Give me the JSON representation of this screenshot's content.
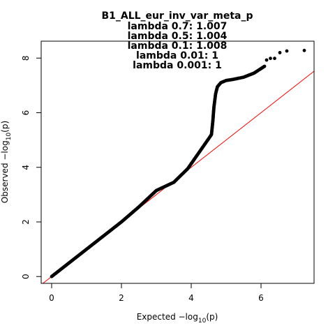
{
  "chart_data": {
    "type": "scatter",
    "title": "B1_ALL_eur_inv_var_meta_p",
    "subtitle_lines": [
      "lambda 0.7: 1.007",
      "lambda 0.5: 1.004",
      "lambda 0.1: 1.008",
      "lambda 0.01: 1",
      "lambda 0.001: 1"
    ],
    "xlabel": {
      "prefix": "Expected  −log",
      "sub": "10",
      "suffix": "(p)"
    },
    "ylabel": {
      "prefix": "Observed  −log",
      "sub": "10",
      "suffix": "(p)"
    },
    "xlim": [
      -0.3,
      7.52
    ],
    "ylim": [
      -0.25,
      8.62
    ],
    "xticks": [
      0,
      2,
      4,
      6
    ],
    "yticks": [
      0,
      2,
      4,
      6,
      8
    ],
    "grid": false,
    "reference_line": {
      "slope": 1,
      "intercept": 0,
      "color": "#ff0000"
    },
    "point_color": "#000000",
    "curve_points": [
      [
        0,
        0
      ],
      [
        0.5,
        0.5
      ],
      [
        1,
        1
      ],
      [
        2,
        2
      ],
      [
        2.5,
        2.55
      ],
      [
        3,
        3.15
      ],
      [
        3.5,
        3.45
      ],
      [
        3.9,
        3.95
      ],
      [
        4.2,
        4.5
      ],
      [
        4.5,
        5.05
      ],
      [
        4.58,
        5.2
      ],
      [
        4.62,
        5.7
      ],
      [
        4.65,
        6.2
      ],
      [
        4.7,
        6.7
      ],
      [
        4.75,
        6.95
      ],
      [
        4.85,
        7.1
      ],
      [
        5,
        7.18
      ],
      [
        5.2,
        7.22
      ],
      [
        5.5,
        7.3
      ],
      [
        5.8,
        7.45
      ],
      [
        6.1,
        7.7
      ]
    ],
    "tail_points": [
      [
        6.16,
        7.93
      ],
      [
        6.27,
        7.99
      ],
      [
        6.39,
        7.99
      ],
      [
        6.54,
        8.2
      ],
      [
        6.74,
        8.26
      ],
      [
        7.24,
        8.28
      ]
    ]
  }
}
